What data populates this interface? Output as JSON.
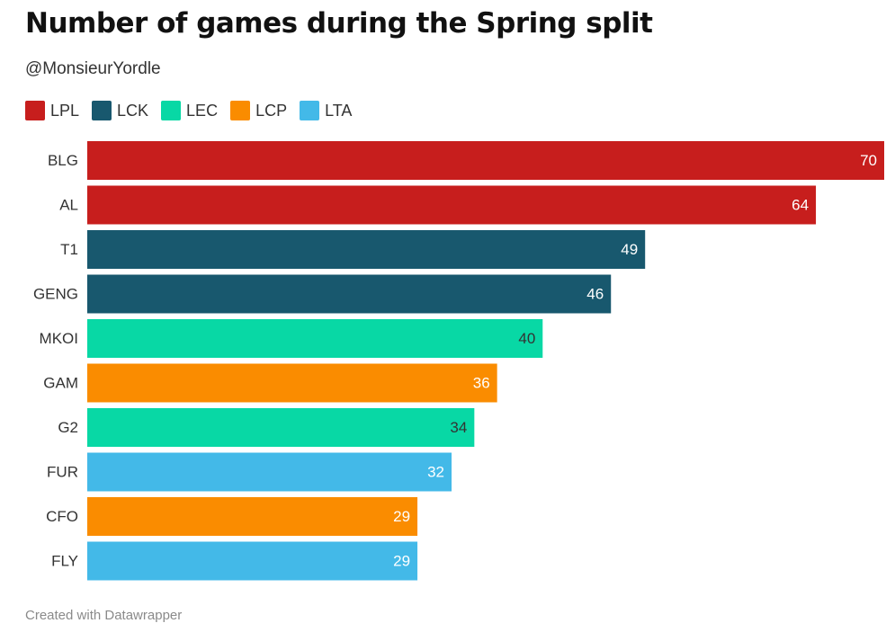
{
  "header": {
    "title": "Number of games during the Spring split",
    "subtitle": "@MonsieurYordle"
  },
  "legend": [
    {
      "label": "LPL",
      "color": "#c71e1d"
    },
    {
      "label": "LCK",
      "color": "#18586e"
    },
    {
      "label": "LEC",
      "color": "#08d8a5"
    },
    {
      "label": "LCP",
      "color": "#fa8c00"
    },
    {
      "label": "LTA",
      "color": "#43b9e8"
    }
  ],
  "footer": {
    "credit": "Created with Datawrapper"
  },
  "chart_data": {
    "type": "bar",
    "orientation": "horizontal",
    "title": "Number of games during the Spring split",
    "subtitle": "@MonsieurYordle",
    "xlabel": "",
    "ylabel": "",
    "xlim": [
      0,
      70
    ],
    "grid": false,
    "legend_position": "top-left",
    "categories": [
      "BLG",
      "AL",
      "T1",
      "GENG",
      "MKOI",
      "GAM",
      "G2",
      "FUR",
      "CFO",
      "FLY"
    ],
    "values": [
      70,
      64,
      49,
      46,
      40,
      36,
      34,
      32,
      29,
      29
    ],
    "groups": [
      "LPL",
      "LPL",
      "LCK",
      "LCK",
      "LEC",
      "LCP",
      "LEC",
      "LTA",
      "LCP",
      "LTA"
    ],
    "value_label_colors": {
      "LPL": "#ffffff",
      "LCK": "#ffffff",
      "LEC": "#333333",
      "LCP": "#ffffff",
      "LTA": "#ffffff"
    }
  }
}
